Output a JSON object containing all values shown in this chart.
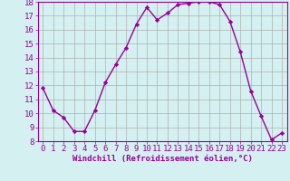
{
  "x": [
    0,
    1,
    2,
    3,
    4,
    5,
    6,
    7,
    8,
    9,
    10,
    11,
    12,
    13,
    14,
    15,
    16,
    17,
    18,
    19,
    20,
    21,
    22,
    23
  ],
  "y": [
    11.8,
    10.2,
    9.7,
    8.7,
    8.7,
    10.2,
    12.2,
    13.5,
    14.7,
    16.4,
    17.6,
    16.7,
    17.2,
    17.8,
    17.9,
    18.0,
    18.0,
    17.8,
    16.6,
    14.4,
    11.6,
    9.8,
    8.1,
    8.6
  ],
  "line_color": "#990099",
  "marker": "D",
  "marker_size": 2.2,
  "bg_color": "#d4f0f0",
  "grid_color": "#b0b0b0",
  "xlabel": "Windchill (Refroidissement éolien,°C)",
  "ylim": [
    8,
    18
  ],
  "yticks": [
    8,
    9,
    10,
    11,
    12,
    13,
    14,
    15,
    16,
    17,
    18
  ],
  "xticks": [
    0,
    1,
    2,
    3,
    4,
    5,
    6,
    7,
    8,
    9,
    10,
    11,
    12,
    13,
    14,
    15,
    16,
    17,
    18,
    19,
    20,
    21,
    22,
    23
  ],
  "xlabel_fontsize": 6.5,
  "tick_fontsize": 6.5,
  "axis_label_color": "#990099",
  "tick_color": "#990099",
  "spine_color": "#990099",
  "line_width": 1.0
}
